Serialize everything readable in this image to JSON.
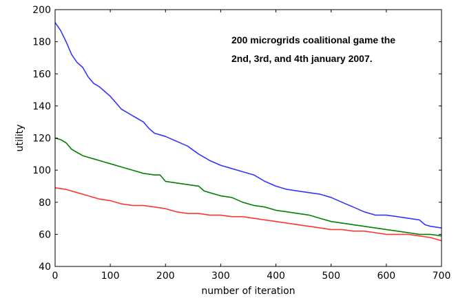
{
  "chart_data": {
    "type": "line",
    "title": "",
    "annotation": {
      "line1": "200 microgrids coalitional game the",
      "line2": "2nd, 3rd, and 4th january 2007."
    },
    "xlabel": "number of iteration",
    "ylabel": "utility",
    "xlim": [
      0,
      700
    ],
    "ylim": [
      40,
      200
    ],
    "xticks": [
      0,
      100,
      200,
      300,
      400,
      500,
      600,
      700
    ],
    "yticks": [
      40,
      60,
      80,
      100,
      120,
      140,
      160,
      180,
      200
    ],
    "grid": false,
    "legend": "none",
    "series": [
      {
        "color": "#3333ff",
        "points": [
          [
            0,
            192
          ],
          [
            10,
            187
          ],
          [
            20,
            180
          ],
          [
            30,
            172
          ],
          [
            40,
            167
          ],
          [
            50,
            164
          ],
          [
            60,
            158
          ],
          [
            70,
            154
          ],
          [
            80,
            152
          ],
          [
            90,
            149
          ],
          [
            100,
            146
          ],
          [
            110,
            142
          ],
          [
            120,
            138
          ],
          [
            130,
            136
          ],
          [
            140,
            134
          ],
          [
            150,
            132
          ],
          [
            160,
            130
          ],
          [
            170,
            126
          ],
          [
            180,
            123
          ],
          [
            190,
            122
          ],
          [
            200,
            121
          ],
          [
            220,
            118
          ],
          [
            240,
            115
          ],
          [
            260,
            110
          ],
          [
            280,
            106
          ],
          [
            300,
            103
          ],
          [
            320,
            101
          ],
          [
            340,
            99
          ],
          [
            360,
            97
          ],
          [
            380,
            93
          ],
          [
            400,
            90
          ],
          [
            420,
            88
          ],
          [
            440,
            87
          ],
          [
            460,
            86
          ],
          [
            480,
            85
          ],
          [
            500,
            83
          ],
          [
            520,
            80
          ],
          [
            540,
            77
          ],
          [
            560,
            74
          ],
          [
            580,
            72
          ],
          [
            600,
            72
          ],
          [
            620,
            71
          ],
          [
            640,
            70
          ],
          [
            660,
            69
          ],
          [
            670,
            66
          ],
          [
            680,
            65
          ],
          [
            700,
            64
          ]
        ]
      },
      {
        "color": "#008000",
        "points": [
          [
            0,
            120
          ],
          [
            10,
            119
          ],
          [
            20,
            117
          ],
          [
            30,
            113
          ],
          [
            40,
            111
          ],
          [
            50,
            109
          ],
          [
            60,
            108
          ],
          [
            70,
            107
          ],
          [
            80,
            106
          ],
          [
            90,
            105
          ],
          [
            100,
            104
          ],
          [
            120,
            102
          ],
          [
            140,
            100
          ],
          [
            160,
            98
          ],
          [
            180,
            97
          ],
          [
            190,
            97
          ],
          [
            200,
            93
          ],
          [
            220,
            92
          ],
          [
            240,
            91
          ],
          [
            260,
            90
          ],
          [
            270,
            87
          ],
          [
            280,
            86
          ],
          [
            300,
            84
          ],
          [
            320,
            83
          ],
          [
            340,
            80
          ],
          [
            360,
            78
          ],
          [
            380,
            77
          ],
          [
            400,
            75
          ],
          [
            420,
            74
          ],
          [
            440,
            73
          ],
          [
            460,
            72
          ],
          [
            480,
            70
          ],
          [
            500,
            68
          ],
          [
            520,
            67
          ],
          [
            540,
            66
          ],
          [
            560,
            65
          ],
          [
            580,
            64
          ],
          [
            600,
            63
          ],
          [
            620,
            62
          ],
          [
            640,
            61
          ],
          [
            660,
            60
          ],
          [
            680,
            60
          ],
          [
            700,
            59
          ]
        ]
      },
      {
        "color": "#ff3333",
        "points": [
          [
            0,
            89
          ],
          [
            20,
            88
          ],
          [
            40,
            86
          ],
          [
            60,
            84
          ],
          [
            80,
            82
          ],
          [
            100,
            81
          ],
          [
            120,
            79
          ],
          [
            140,
            78
          ],
          [
            160,
            78
          ],
          [
            180,
            77
          ],
          [
            200,
            76
          ],
          [
            220,
            74
          ],
          [
            240,
            73
          ],
          [
            260,
            73
          ],
          [
            280,
            72
          ],
          [
            300,
            72
          ],
          [
            320,
            71
          ],
          [
            340,
            71
          ],
          [
            360,
            70
          ],
          [
            380,
            69
          ],
          [
            400,
            68
          ],
          [
            420,
            67
          ],
          [
            440,
            66
          ],
          [
            460,
            65
          ],
          [
            480,
            64
          ],
          [
            500,
            63
          ],
          [
            520,
            63
          ],
          [
            540,
            62
          ],
          [
            560,
            62
          ],
          [
            580,
            61
          ],
          [
            600,
            60
          ],
          [
            620,
            60
          ],
          [
            640,
            60
          ],
          [
            660,
            59
          ],
          [
            680,
            58
          ],
          [
            690,
            57
          ],
          [
            700,
            56
          ]
        ]
      }
    ]
  }
}
